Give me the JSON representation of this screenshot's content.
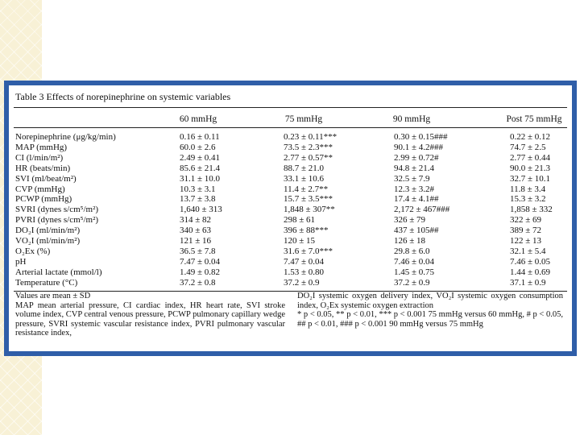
{
  "table": {
    "title": "Table 3   Effects of norepinephrine on systemic variables",
    "columns": [
      "60 mmHg",
      "75 mmHg",
      "90 mmHg",
      "Post 75 mmHg"
    ],
    "rows": [
      [
        "Norepinephrine (μg/kg/min)",
        "0.16 ± 0.11",
        "0.23 ± 0.11***",
        "0.30 ± 0.15###",
        "0.22 ± 0.12"
      ],
      [
        "MAP (mmHg)",
        "60.0 ± 2.6",
        "73.5 ± 2.3***",
        "90.1 ± 4.2###",
        "74.7 ± 2.5"
      ],
      [
        "CI (l/min/m²)",
        "2.49 ± 0.41",
        "2.77 ± 0.57**",
        "2.99 ± 0.72#",
        "2.77 ± 0.44"
      ],
      [
        "HR (beats/min)",
        "85.6 ± 21.4",
        "88.7 ± 21.0",
        "94.8 ± 21.4",
        "90.0 ± 21.3"
      ],
      [
        "SVI (ml/beat/m²)",
        "31.1 ± 10.0",
        "33.1 ± 10.6",
        "32.5 ± 7.9",
        "32.7 ± 10.1"
      ],
      [
        "CVP (mmHg)",
        "10.3 ± 3.1",
        "11.4 ± 2.7**",
        "12.3 ± 3.2#",
        "11.8 ± 3.4"
      ],
      [
        "PCWP (mmHg)",
        "13.7 ± 3.8",
        "15.7 ± 3.5***",
        "17.4 ± 4.1##",
        "15.3 ± 3.2"
      ],
      [
        "SVRI (dynes s/cm⁵/m²)",
        "1,640 ± 313",
        "1,848 ± 307**",
        "2,172 ± 467###",
        "1,858 ± 332"
      ],
      [
        "PVRI (dynes s/cm⁵/m²)",
        "314 ± 82",
        "298 ± 61",
        "326 ± 79",
        "322 ± 69"
      ],
      [
        "DO₂I (ml/min/m²)",
        "340 ± 63",
        "396 ± 88***",
        "437 ± 105##",
        "389 ± 72"
      ],
      [
        "VO₂I (ml/min/m²)",
        "121 ± 16",
        "120 ± 15",
        "126 ± 18",
        "122 ± 13"
      ],
      [
        "O₂Ex (%)",
        "36.5 ± 7.8",
        "31.6 ± 7.0***",
        "29.8 ± 6.0",
        "32.1 ± 5.4"
      ],
      [
        "pH",
        "7.47 ± 0.04",
        "7.47 ± 0.04",
        "7.46 ± 0.04",
        "7.46 ± 0.05"
      ],
      [
        "Arterial lactate (mmol/l)",
        "1.49 ± 0.82",
        "1.53 ± 0.80",
        "1.45 ± 0.75",
        "1.44 ± 0.69"
      ],
      [
        "Temperature (°C)",
        "37.2 ± 0.8",
        "37.2 ± 0.9",
        "37.2 ± 0.9",
        "37.1 ± 0.9"
      ]
    ],
    "notes_left": [
      "Values are mean ± SD",
      "MAP mean arterial pressure, CI cardiac index, HR heart rate, SVI stroke volume index, CVP central venous pressure, PCWP pulmonary capillary wedge pressure, SVRI systemic vascular resistance index, PVRI pulmonary vascular resistance index,"
    ],
    "notes_right": [
      "DO₂I systemic oxygen delivery index, VO₂I systemic oxygen consumption index, O₂Ex systemic oxygen extraction",
      "* p < 0.05,   ** p < 0.01,   *** p < 0.001   75 mmHg versus 60 mmHg, # p < 0.05, ## p < 0.01, ### p < 0.001 90 mmHg versus 75 mmHg"
    ]
  }
}
